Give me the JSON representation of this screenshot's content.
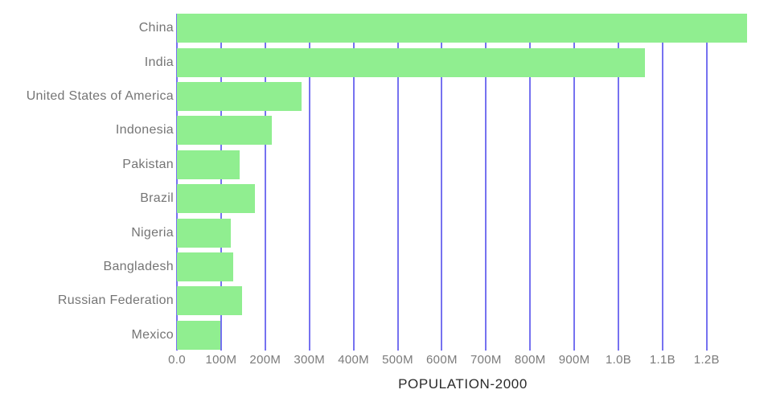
{
  "chart_data": {
    "type": "bar",
    "orientation": "horizontal",
    "title": "POPULATION-2000",
    "categories": [
      "China",
      "India",
      "United States of America",
      "Indonesia",
      "Pakistan",
      "Brazil",
      "Nigeria",
      "Bangladesh",
      "Russian Federation",
      "Mexico"
    ],
    "values_millions": [
      1290.5,
      1059.6,
      281.7,
      214.1,
      142.3,
      175.9,
      122.9,
      127.7,
      146.8,
      97.9
    ],
    "x_tick_labels": [
      "0.0",
      "100M",
      "200M",
      "300M",
      "400M",
      "500M",
      "600M",
      "700M",
      "800M",
      "900M",
      "1.0B",
      "1.1B",
      "1.2B"
    ],
    "x_tick_values_millions": [
      0,
      100,
      200,
      300,
      400,
      500,
      600,
      700,
      800,
      900,
      1000,
      1100,
      1200
    ],
    "xlim_millions": [
      0,
      1295
    ],
    "grid": "vertical-gridlines-behind-bars",
    "legend": "none",
    "xlabel": "",
    "ylabel": "",
    "colors": {
      "bar": "#90EE90",
      "gridline": "#7672F0",
      "category_label": "#757575",
      "tick_label": "#7b7b7b",
      "title": "#2b2b2b",
      "background": "#ffffff"
    }
  }
}
